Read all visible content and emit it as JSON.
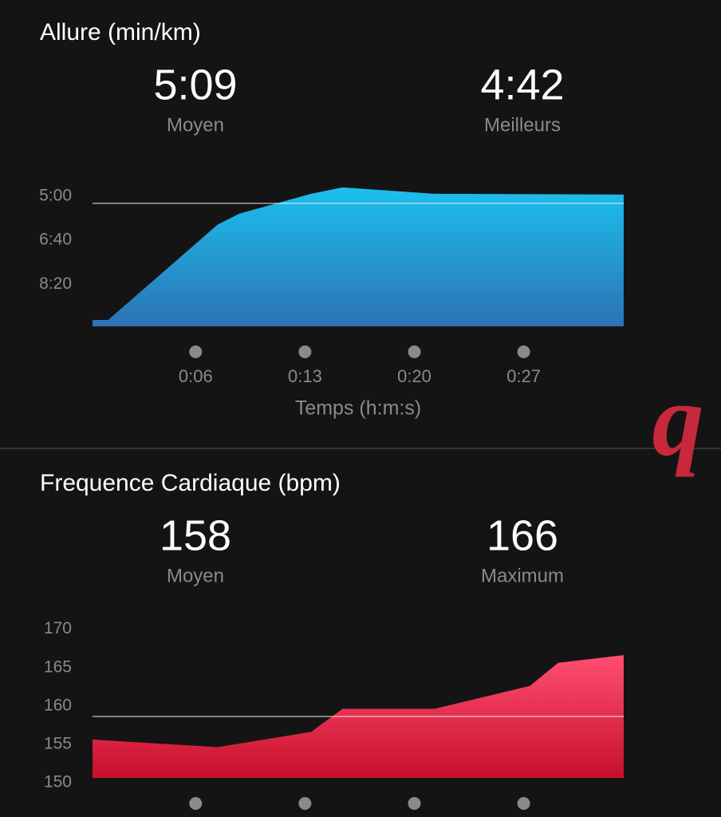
{
  "chart_data": [
    {
      "type": "area",
      "title": "Allure (min/km)",
      "stats": [
        {
          "value": "5:09",
          "label": "Moyen"
        },
        {
          "value": "4:42",
          "label": "Meilleurs"
        }
      ],
      "x": [
        -0.6,
        0.4,
        7.4,
        8.8,
        13.4,
        15.4,
        21.3,
        33.4
      ],
      "values": [
        9.56,
        9.56,
        5.96,
        5.54,
        4.79,
        4.55,
        4.79,
        4.82
      ],
      "xlim": [
        -0.6,
        33.4
      ],
      "ylim": [
        9.8,
        4.1
      ],
      "xticks": [
        {
          "value": 6,
          "label": "0:06"
        },
        {
          "value": 13,
          "label": "0:13"
        },
        {
          "value": 20,
          "label": "0:20"
        },
        {
          "value": 27,
          "label": "0:27"
        }
      ],
      "yticks": [
        {
          "value": 5,
          "label": "5:00"
        },
        {
          "value": 6.667,
          "label": "6:40"
        },
        {
          "value": 8.333,
          "label": "8:20"
        }
      ],
      "mean_line": 5.15,
      "x_label": "Temps (h:m:s)",
      "color": [
        "#1cc0ee",
        "#2c72b4"
      ]
    },
    {
      "type": "area",
      "title": "Frequence Cardiaque (bpm)",
      "stats": [
        {
          "value": "158",
          "label": "Moyen"
        },
        {
          "value": "166",
          "label": "Maximum"
        }
      ],
      "x": [
        -0.6,
        7.4,
        13.4,
        15.4,
        21.3,
        27.4,
        29.2,
        33.4
      ],
      "values": [
        155,
        154,
        156,
        159,
        159,
        162,
        165,
        166
      ],
      "xlim": [
        -0.6,
        33.4
      ],
      "ylim": [
        150,
        171
      ],
      "xticks": [
        6,
        13,
        20,
        27
      ],
      "yticks": [
        150,
        155,
        160,
        165,
        170
      ],
      "mean_line": 158,
      "color": [
        "#ff4f70",
        "#c70f2c"
      ]
    }
  ],
  "watermark": "q"
}
